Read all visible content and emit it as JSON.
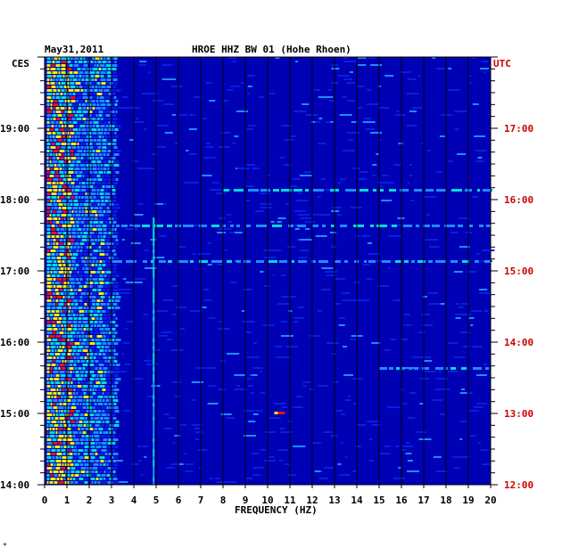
{
  "header": {
    "date": "May31,2011",
    "title": "HROE HHZ BW 01 (Hohe Rhoen)"
  },
  "left_axis_label": "CES",
  "right_axis_label": "UTC",
  "footer_mark": "*",
  "chart_data": {
    "type": "heatmap",
    "title": "HROE HHZ BW 01 (Hohe Rhoen)",
    "xlabel": "FREQUENCY (HZ)",
    "xlim": [
      0,
      20
    ],
    "x_ticks": [
      "0",
      "1",
      "2",
      "3",
      "4",
      "5",
      "6",
      "7",
      "8",
      "9",
      "10",
      "11",
      "12",
      "13",
      "14",
      "15",
      "16",
      "17",
      "18",
      "19",
      "20"
    ],
    "y_ticks_left": [
      "19:00",
      "18:00",
      "17:00",
      "16:00",
      "15:00",
      "14:00"
    ],
    "y_ticks_right": [
      "17:00",
      "16:00",
      "15:00",
      "14:00",
      "13:00",
      "12:00"
    ],
    "y_range_utc_hours": [
      12,
      18
    ],
    "grid": true,
    "colors": {
      "background": "#0000b4",
      "low": "#0a1ee6",
      "mid": "#1e8cff",
      "highlight": "#00dcdc",
      "high": "#f0f000",
      "peak": "#e61414"
    },
    "features": [
      {
        "label": "strong low-frequency energy",
        "freq_range_hz": [
          0.2,
          3.0
        ]
      },
      {
        "label": "persistent line",
        "freq_hz": 4.9
      },
      {
        "label": "broadband event",
        "time_utc": "16:10"
      },
      {
        "label": "broadband event",
        "time_utc": "15:40"
      },
      {
        "label": "narrow peak",
        "freq_hz": 10.6,
        "time_utc": "13:00"
      }
    ]
  }
}
